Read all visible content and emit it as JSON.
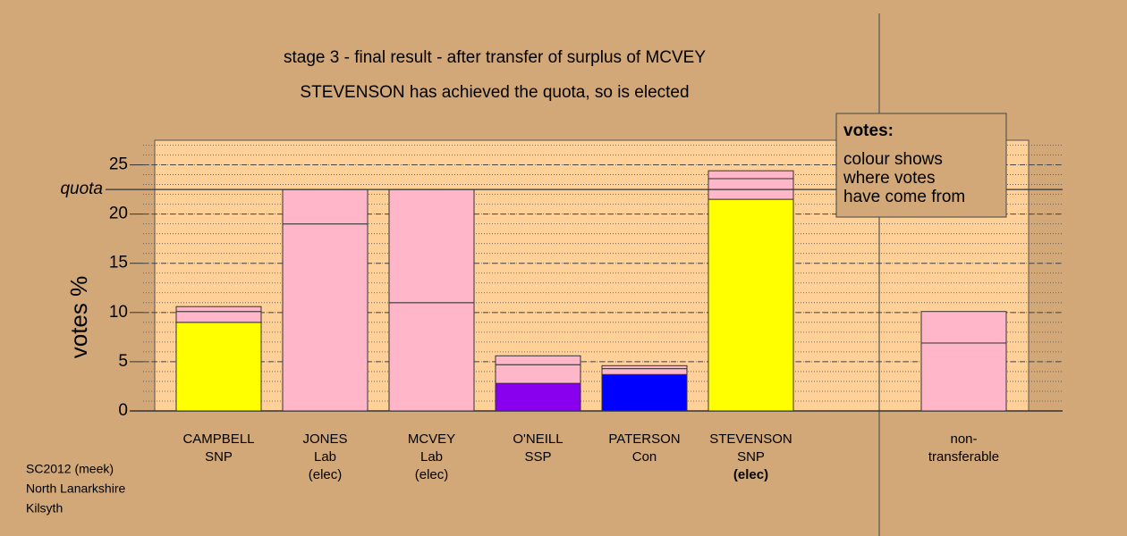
{
  "chart_data": {
    "type": "bar",
    "stacked": true,
    "title": "stage 3 - final result - after transfer of surplus of MCVEY",
    "subtitle": "STEVENSON has achieved the quota, so is elected",
    "y_label": "votes %",
    "labels": [
      [
        "CAMPBELL",
        "SNP"
      ],
      [
        "JONES",
        "Lab",
        "(elec)"
      ],
      [
        "MCVEY",
        "Lab",
        "(elec)"
      ],
      [
        "O'NEILL",
        "SSP"
      ],
      [
        "PATERSON",
        "Con"
      ],
      [
        "STEVENSON",
        "SNP",
        "(elec)"
      ],
      [
        "non-",
        "transferable"
      ]
    ],
    "emphasis": {
      "category": 5,
      "line": 2
    },
    "series": [
      {
        "colors": [
          "#ffff00",
          "#ffb6c8",
          "#ffb6c8",
          "#8800ee",
          "#0000ff",
          "#ffff00",
          "#ffb6c8"
        ],
        "values": [
          9.0,
          19.0,
          11.0,
          2.8,
          3.7,
          21.5,
          6.9
        ]
      },
      {
        "color": "#ffb6c8",
        "values": [
          1.1,
          3.5,
          11.5,
          1.9,
          0.6,
          2.1,
          3.2
        ]
      },
      {
        "color": "#ffb6c8",
        "values": [
          0.5,
          null,
          null,
          0.9,
          0.3,
          0.8,
          null
        ]
      }
    ],
    "quota": {
      "label": "quota",
      "value": 22.5
    },
    "ylim": [
      0,
      27.5
    ],
    "yticks": [
      0,
      5,
      10,
      15,
      20,
      25
    ],
    "grid": true,
    "legend": {
      "title": "votes:",
      "lines": [
        "colour shows",
        "where votes",
        "have come from"
      ]
    },
    "footnote": [
      "SC2012 (meek)",
      "North Lanarkshire",
      "Kilsyth"
    ]
  }
}
